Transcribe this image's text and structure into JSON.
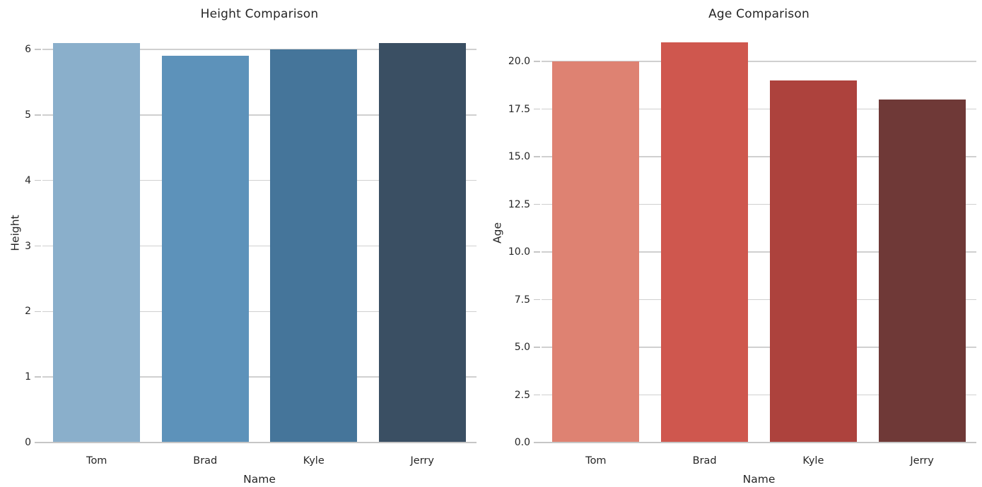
{
  "figure": {
    "background_color": "#ffffff",
    "text_color": "#262626",
    "grid_color": "#d0d0d0",
    "axis_color": "#c6c6c6"
  },
  "chart_data": [
    {
      "type": "bar",
      "title": "Height Comparison",
      "xlabel": "Name",
      "ylabel": "Height",
      "categories": [
        "Tom",
        "Brad",
        "Kyle",
        "Jerry"
      ],
      "values": [
        6.1,
        5.9,
        6.0,
        6.1
      ],
      "bar_colors": [
        "#8aafcb",
        "#5d92ba",
        "#45759a",
        "#3a4f63"
      ],
      "ylim": [
        0,
        6.41
      ],
      "yticks": [
        0,
        1,
        2,
        3,
        4,
        5,
        6
      ],
      "ytick_labels": [
        "0",
        "1",
        "2",
        "3",
        "4",
        "5",
        "6"
      ],
      "grid": true,
      "legend_position": "none",
      "bar_width_fraction": 0.8
    },
    {
      "type": "bar",
      "title": "Age Comparison",
      "xlabel": "Name",
      "ylabel": "Age",
      "categories": [
        "Tom",
        "Brad",
        "Kyle",
        "Jerry"
      ],
      "values": [
        20,
        21,
        19,
        18
      ],
      "bar_colors": [
        "#de8272",
        "#cf574e",
        "#ad423d",
        "#6f3937"
      ],
      "ylim": [
        0,
        22.04
      ],
      "yticks": [
        0,
        2.5,
        5,
        7.5,
        10,
        12.5,
        15,
        17.5,
        20
      ],
      "ytick_labels": [
        "0.0",
        "2.5",
        "5.0",
        "7.5",
        "10.0",
        "12.5",
        "15.0",
        "17.5",
        "20.0"
      ],
      "grid": true,
      "legend_position": "none",
      "bar_width_fraction": 0.8
    }
  ]
}
